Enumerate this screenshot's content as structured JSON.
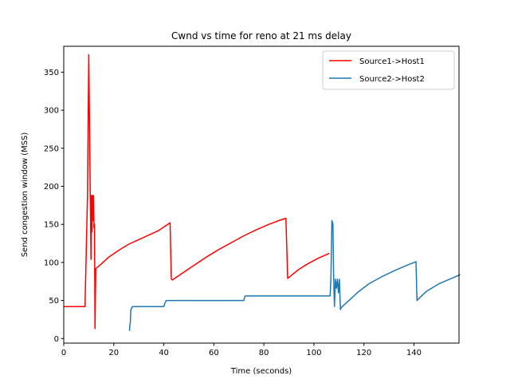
{
  "chart_data": {
    "type": "line",
    "title": "Cwnd vs time for reno at 21 ms delay",
    "xlabel": "Time (seconds)",
    "ylabel": "Send congestion window (MSS)",
    "xlim": [
      0,
      158
    ],
    "ylim": [
      -6,
      384
    ],
    "xticks": [
      0,
      20,
      40,
      60,
      80,
      100,
      120,
      140
    ],
    "yticks": [
      0,
      50,
      100,
      150,
      200,
      250,
      300,
      350
    ],
    "grid": false,
    "legend_position": "top-right",
    "series": [
      {
        "name": "Source1->Host1",
        "color": "#ff0000",
        "x": [
          0,
          8.5,
          9.5,
          10.0,
          10.6,
          10.9,
          11.1,
          11.3,
          11.5,
          11.7,
          11.9,
          12.1,
          12.3,
          12.5,
          12.8,
          13.2,
          15,
          18,
          22,
          26,
          30,
          34,
          38,
          42.5,
          43.0,
          43.5,
          47,
          52,
          57,
          62,
          67,
          72,
          77,
          82,
          86,
          88.8,
          89.5,
          91,
          94,
          98,
          102,
          106.2
        ],
        "y": [
          42,
          42,
          188,
          373,
          188,
          104,
          188,
          140,
          188,
          155,
          188,
          145,
          150,
          13,
          92,
          93,
          98,
          107,
          116,
          124,
          130,
          136,
          142,
          152,
          78,
          77,
          85,
          96,
          107,
          117,
          126,
          135,
          143,
          150,
          155,
          158,
          79,
          83,
          91,
          99,
          106,
          112
        ]
      },
      {
        "name": "Source2->Host2",
        "color": "#1f77b4",
        "x": [
          26.3,
          26.4,
          26.6,
          26.8,
          27.1,
          27.5,
          40,
          40.5,
          41,
          72,
          72.5,
          73,
          106.5,
          106.8,
          107.2,
          107.6,
          107.9,
          108.2,
          108.6,
          109,
          109.4,
          109.8,
          110.2,
          110.6,
          111,
          114,
          118,
          122,
          127,
          132,
          137,
          140.8,
          141.2,
          141.8,
          145,
          150,
          155,
          158.5
        ],
        "y": [
          10,
          18,
          20,
          37,
          40,
          42,
          42,
          47,
          50,
          50,
          56,
          56,
          56,
          80,
          155,
          150,
          80,
          42,
          78,
          66,
          78,
          60,
          78,
          38,
          41,
          50,
          62,
          72,
          81,
          89,
          96,
          101,
          50,
          52,
          62,
          72,
          79,
          84
        ]
      }
    ]
  }
}
